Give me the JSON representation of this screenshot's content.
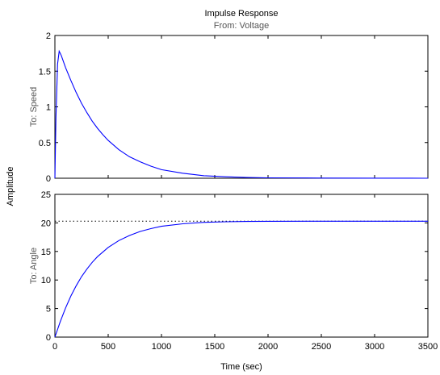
{
  "figure": {
    "title": "Impulse Response",
    "subtitle": "From: Voltage",
    "ylabel": "Amplitude",
    "xlabel": "Time (sec)"
  },
  "chart_data": [
    {
      "type": "line",
      "row_label": "To: Speed",
      "xlim": [
        0,
        3500
      ],
      "ylim": [
        0,
        2
      ],
      "x_ticks": [
        "0",
        "500",
        "1000",
        "1500",
        "2000",
        "2500",
        "3000",
        "3500"
      ],
      "y_ticks": [
        "0",
        "0.5",
        "1",
        "1.5",
        "2"
      ],
      "line_color": "#0000ff",
      "series": [
        {
          "x": [
            0,
            10,
            25,
            40,
            60,
            100,
            150,
            200,
            250,
            300,
            350,
            400,
            450,
            500,
            600,
            700,
            800,
            900,
            1000,
            1200,
            1400,
            1600,
            1800,
            2000,
            2500,
            3000,
            3500
          ],
          "y": [
            0,
            0.85,
            1.6,
            1.78,
            1.72,
            1.55,
            1.37,
            1.2,
            1.05,
            0.92,
            0.8,
            0.7,
            0.61,
            0.53,
            0.4,
            0.3,
            0.23,
            0.17,
            0.12,
            0.07,
            0.035,
            0.02,
            0.01,
            0.006,
            0.002,
            0.001,
            0.0
          ]
        }
      ]
    },
    {
      "type": "line",
      "row_label": "To: Angle",
      "xlim": [
        0,
        3500
      ],
      "ylim": [
        0,
        25
      ],
      "x_ticks": [
        "0",
        "500",
        "1000",
        "1500",
        "2000",
        "2500",
        "3000",
        "3500"
      ],
      "y_ticks": [
        "0",
        "5",
        "10",
        "15",
        "20",
        "25"
      ],
      "line_color": "#0000ff",
      "reference_line": {
        "y": 20.3,
        "style": "dotted",
        "color": "#000000"
      },
      "series": [
        {
          "x": [
            0,
            50,
            100,
            150,
            200,
            250,
            300,
            350,
            400,
            500,
            600,
            700,
            800,
            900,
            1000,
            1200,
            1400,
            1600,
            1800,
            2000,
            2500,
            3000,
            3500
          ],
          "y": [
            0,
            2.7,
            5.1,
            7.2,
            9.0,
            10.6,
            11.9,
            13.1,
            14.1,
            15.7,
            16.9,
            17.8,
            18.5,
            19.0,
            19.4,
            19.85,
            20.1,
            20.2,
            20.25,
            20.28,
            20.3,
            20.3,
            20.3
          ]
        }
      ]
    }
  ]
}
